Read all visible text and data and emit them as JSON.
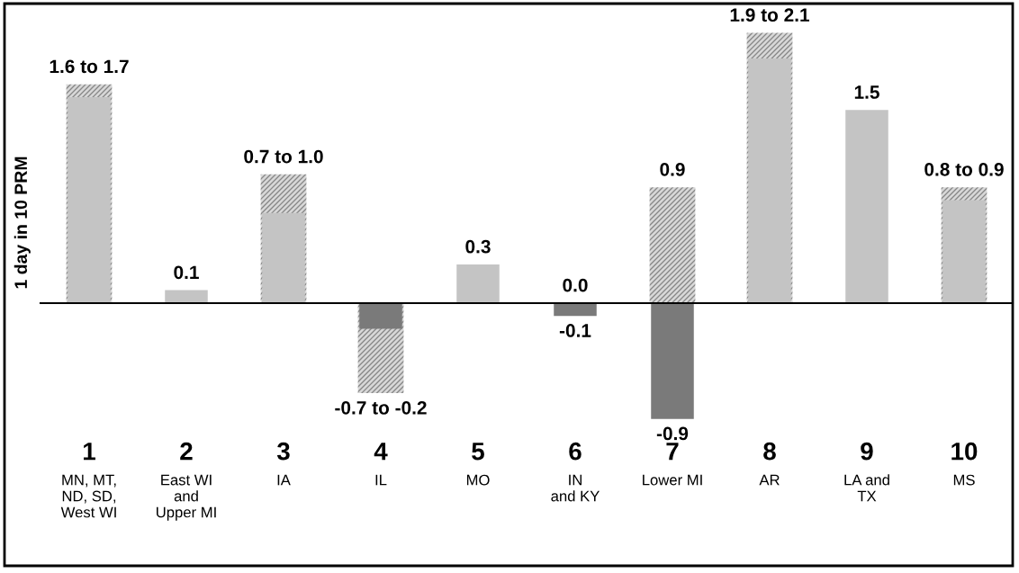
{
  "chart_data": {
    "type": "bar",
    "ylabel": "1 day in 10 PRM",
    "categories": [
      "1\nMN, MT,\nND, SD,\nWest WI",
      "2\nEast WI\nand\nUpper MI",
      "3\nIA",
      "4\nIL",
      "5\nMO",
      "6\nIN\nand KY",
      "7\nLower MI",
      "8\nAR",
      "9\nLA and\nTX",
      "10\nMS"
    ],
    "series": [
      {
        "color": "#d8d8d8",
        "values": [
          1.7,
          null,
          1.0,
          -0.7,
          null,
          0.0,
          0.9,
          2.1,
          null,
          0.9
        ],
        "value_labels": [
          "1.6 to 1.7",
          null,
          "0.7 to 1.0",
          "-0.7 to -0.2",
          null,
          "0.0",
          "0.9",
          "1.9 to 2.1",
          null,
          "0.8 to 0.9"
        ]
      },
      {
        "colors": [
          "#c4c4c4",
          "#c4c4c4",
          "#c4c4c4",
          "#7a7a7a",
          "#c4c4c4",
          "#7a7a7a",
          "#7a7a7a",
          "#c4c4c4",
          "#c4c4c4",
          "#c4c4c4"
        ],
        "values": [
          1.6,
          0.1,
          0.7,
          -0.2,
          0.3,
          -0.1,
          -0.9,
          1.9,
          1.5,
          0.8
        ],
        "value_labels": [
          null,
          "0.1",
          null,
          null,
          "0.3",
          "-0.1",
          "-0.9",
          null,
          "1.5",
          null
        ]
      }
    ],
    "legend": false
  }
}
